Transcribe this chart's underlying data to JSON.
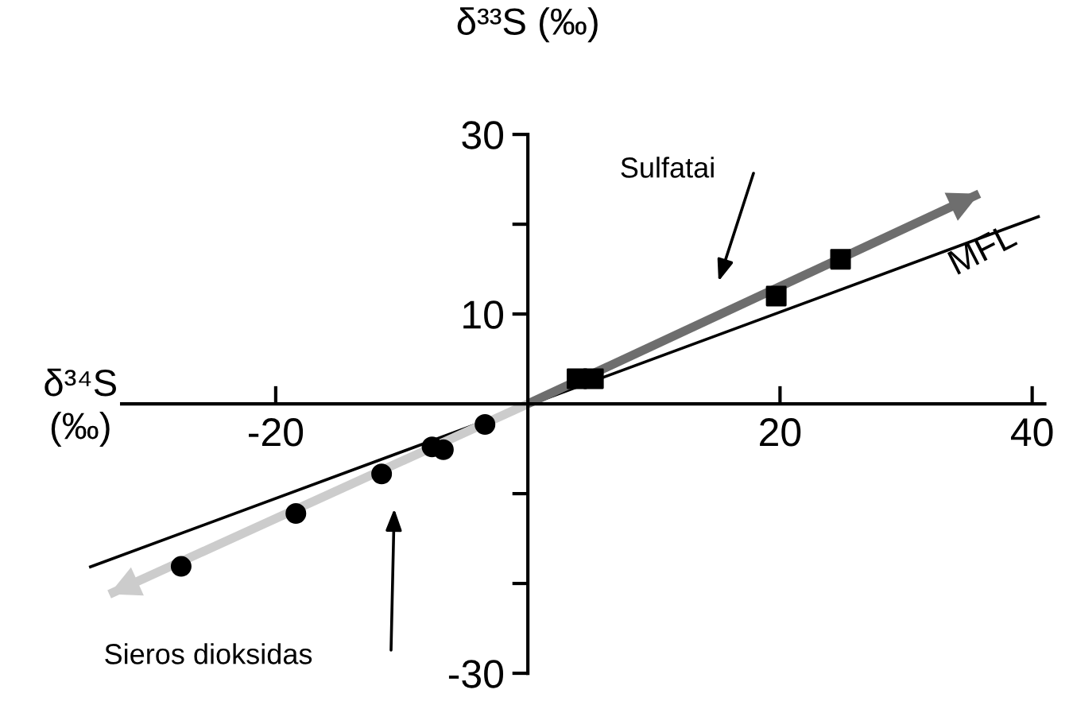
{
  "chart_data": {
    "type": "scatter",
    "xlabel": "δ³⁴S\n(‰)",
    "ylabel": "δ³³S (‰)",
    "xlim": [
      -35,
      41
    ],
    "ylim": [
      -30,
      30
    ],
    "xticks": [
      -20,
      20,
      40
    ],
    "yticks": [
      30,
      {
        "value": 20,
        "label": null
      },
      10,
      {
        "value": -10,
        "label": null
      },
      {
        "value": -20,
        "label": null
      },
      -30
    ],
    "grid": false,
    "legend": false,
    "series": [
      {
        "marker": "square",
        "color": "#000000",
        "x": [
          3.9,
          5.2,
          19.7,
          24.8
        ],
        "values": [
          2.8,
          2.8,
          12.0,
          16.1
        ]
      },
      {
        "marker": "circle",
        "color": "#000000",
        "x": [
          -27.5,
          -18.4,
          -11.6,
          -7.6,
          -6.7,
          -3.4
        ],
        "values": [
          -18.1,
          -12.2,
          -7.8,
          -4.8,
          -5.1,
          -2.3
        ]
      },
      {
        "type": "line",
        "name": "MFL",
        "color": "#000000",
        "x": [
          -34.8,
          40.6
        ],
        "values": [
          -18.2,
          20.9
        ]
      },
      {
        "type": "line",
        "color": "#6e6e6e",
        "x": [
          0,
          35.8
        ],
        "values": [
          0,
          23.4
        ]
      },
      {
        "type": "line",
        "color": "#cccccc",
        "x": [
          0,
          -33.2
        ],
        "values": [
          0,
          -21.2
        ]
      }
    ],
    "annotations": [
      "Sulfatai",
      "Sieros dioksidas"
    ]
  }
}
